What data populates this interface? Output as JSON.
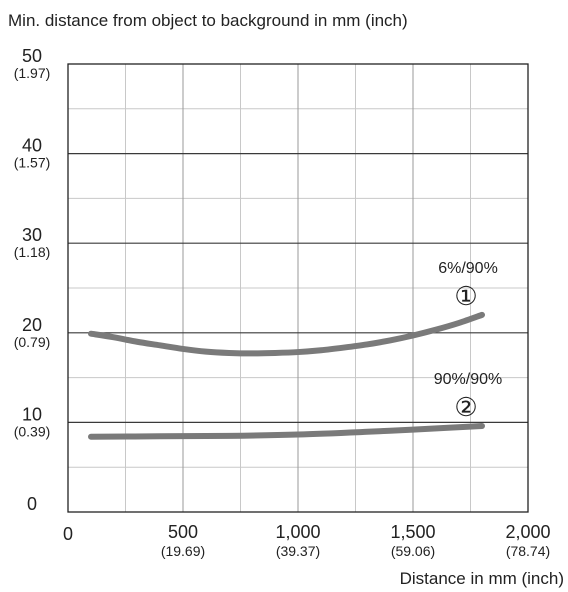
{
  "chart_data": {
    "type": "line",
    "title": "",
    "ylabel": "Min. distance from object to background in mm (inch)",
    "xlabel": "Distance in mm (inch)",
    "xlim": [
      0,
      2000
    ],
    "ylim": [
      0,
      50
    ],
    "grid": true,
    "x_ticks": [
      {
        "value": 0,
        "label": "0",
        "sublabel": ""
      },
      {
        "value": 500,
        "label": "500",
        "sublabel": "(19.69)"
      },
      {
        "value": 1000,
        "label": "1,000",
        "sublabel": "(39.37)"
      },
      {
        "value": 1500,
        "label": "1,500",
        "sublabel": "(59.06)"
      },
      {
        "value": 2000,
        "label": "2,000",
        "sublabel": "(78.74)"
      }
    ],
    "y_ticks": [
      {
        "value": 0,
        "label": "0",
        "sublabel": ""
      },
      {
        "value": 10,
        "label": "10",
        "sublabel": "(0.39)"
      },
      {
        "value": 20,
        "label": "20",
        "sublabel": "(0.79)"
      },
      {
        "value": 30,
        "label": "30",
        "sublabel": "(1.18)"
      },
      {
        "value": 40,
        "label": "40",
        "sublabel": "(1.57)"
      },
      {
        "value": 50,
        "label": "50",
        "sublabel": "(1.97)"
      }
    ],
    "series": [
      {
        "name": "6%/90%",
        "marker": "①",
        "color": "#7a7a7a",
        "x": [
          100,
          200,
          300,
          400,
          500,
          600,
          700,
          800,
          900,
          1000,
          1100,
          1200,
          1300,
          1400,
          1500,
          1600,
          1700,
          1800
        ],
        "y": [
          19.9,
          19.5,
          19.0,
          18.6,
          18.2,
          17.9,
          17.75,
          17.7,
          17.75,
          17.85,
          18.05,
          18.35,
          18.7,
          19.15,
          19.7,
          20.35,
          21.1,
          22.0
        ]
      },
      {
        "name": "90%/90%",
        "marker": "②",
        "color": "#7a7a7a",
        "x": [
          100,
          400,
          700,
          1000,
          1300,
          1500,
          1800
        ],
        "y": [
          8.4,
          8.45,
          8.5,
          8.65,
          8.95,
          9.2,
          9.6
        ]
      }
    ]
  }
}
